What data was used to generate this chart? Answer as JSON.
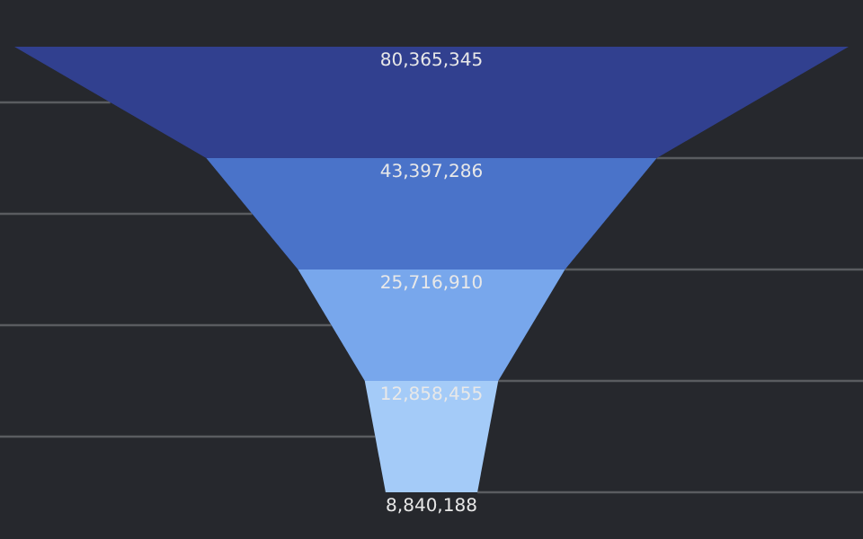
{
  "chart_data": {
    "type": "other",
    "values": [
      80365345,
      43397286,
      25716910,
      12858455,
      8840188
    ],
    "value_labels": [
      "80,365,345",
      "43,397,286",
      "25,716,910",
      "12,858,455",
      "8,840,188"
    ],
    "colors": [
      "#31408f",
      "#4a73c9",
      "#78a7ec",
      "#a4cbf8",
      "#a4cbf8"
    ]
  }
}
